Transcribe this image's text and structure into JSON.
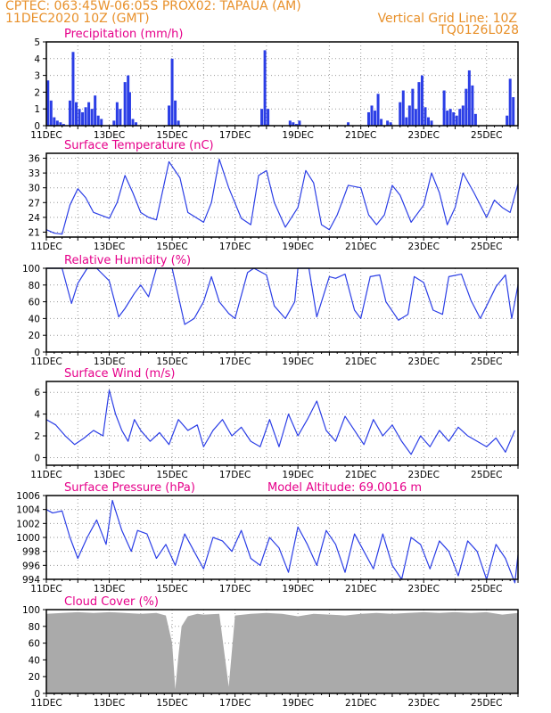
{
  "header": {
    "line1_left": "CPTEC:   063:45W-06:05S   PROX02: TAPAUA (AM)",
    "line2_left": "11DEC2020  10Z (GMT)",
    "line2_right": "Vertical Grid Line: 10Z",
    "line3_right": "TQ0126L028"
  },
  "colors": {
    "line": "#2b3ee6",
    "bar": "#2b3ee6",
    "cloud": "#aaaaaa",
    "title": "#e6008a",
    "header": "#e8902a"
  },
  "chart_data": [
    {
      "type": "bar",
      "title": "Precipitation (mm/h)",
      "x": [
        0.05,
        0.15,
        0.25,
        0.35,
        0.45,
        0.55,
        0.75,
        0.85,
        0.95,
        1.05,
        1.15,
        1.25,
        1.35,
        1.45,
        1.55,
        1.65,
        1.75,
        2.15,
        2.25,
        2.35,
        2.5,
        2.6,
        2.65,
        2.75,
        2.85,
        3.9,
        4.0,
        4.1,
        4.2,
        6.85,
        6.95,
        7.05,
        7.75,
        7.85,
        7.95,
        8.05,
        9.6,
        10.25,
        10.35,
        10.45,
        10.55,
        10.65,
        10.85,
        10.95,
        11.25,
        11.35,
        11.45,
        11.55,
        11.65,
        11.75,
        11.85,
        11.95,
        12.05,
        12.15,
        12.25,
        12.65,
        12.75,
        12.85,
        12.95,
        13.05,
        13.15,
        13.25,
        13.35,
        13.45,
        13.55,
        13.65,
        14.65,
        14.75,
        14.85
      ],
      "values": [
        2.7,
        1.5,
        0.5,
        0.3,
        0.2,
        0.1,
        1.5,
        4.4,
        1.4,
        1.0,
        0.8,
        1.1,
        1.4,
        1.0,
        1.8,
        0.6,
        0.4,
        0.3,
        1.4,
        1.0,
        2.6,
        3.0,
        2.0,
        0.4,
        0.2,
        1.2,
        4.0,
        1.5,
        0.3,
        1.0,
        4.5,
        1.0,
        0.3,
        0.2,
        0.1,
        0.3,
        0.2,
        0.8,
        1.2,
        0.9,
        1.9,
        0.4,
        0.3,
        0.2,
        1.4,
        2.1,
        0.5,
        1.2,
        2.2,
        1.0,
        2.6,
        3.0,
        1.1,
        0.5,
        0.3,
        2.1,
        0.9,
        1.0,
        0.8,
        0.6,
        1.0,
        1.2,
        2.2,
        3.3,
        2.4,
        0.7,
        0.6,
        2.8,
        1.7
      ],
      "xlim": [
        0,
        15
      ],
      "ylim": [
        0,
        5
      ],
      "yticks": [
        0,
        1,
        2,
        3,
        4,
        5
      ],
      "xticks": [
        "11DEC",
        "13DEC",
        "15DEC",
        "17DEC",
        "19DEC",
        "21DEC",
        "23DEC",
        "25DEC"
      ],
      "grid": true
    },
    {
      "type": "line",
      "title": "Surface Temperature (nC)",
      "x": [
        0,
        0.25,
        0.5,
        0.75,
        1.0,
        1.25,
        1.5,
        2.0,
        2.25,
        2.5,
        2.75,
        3.0,
        3.25,
        3.5,
        3.9,
        4.25,
        4.5,
        4.75,
        5.0,
        5.25,
        5.5,
        5.8,
        6.2,
        6.5,
        6.75,
        7.0,
        7.25,
        7.6,
        8.0,
        8.25,
        8.5,
        8.75,
        9.0,
        9.25,
        9.6,
        10.0,
        10.25,
        10.5,
        10.75,
        11.0,
        11.25,
        11.6,
        12.0,
        12.25,
        12.5,
        12.75,
        13.0,
        13.25,
        13.6,
        14.0,
        14.25,
        14.5,
        14.75,
        15.0
      ],
      "y": [
        21.5,
        20.8,
        20.6,
        26.5,
        29.8,
        28,
        25,
        23.8,
        27,
        32.5,
        29,
        25,
        24,
        23.5,
        35.3,
        32,
        25,
        24,
        23,
        27,
        35.8,
        30,
        23.8,
        22.5,
        32.5,
        33.5,
        27,
        22,
        26,
        33.5,
        31,
        22.5,
        21.5,
        24.5,
        30.5,
        30,
        24.5,
        22.5,
        24.5,
        30.5,
        28.5,
        23,
        26.5,
        33,
        29,
        22.5,
        26,
        33,
        29,
        24,
        27.5,
        26,
        25,
        30.8
      ],
      "xlim": [
        0,
        15
      ],
      "ylim": [
        20,
        37
      ],
      "yticks": [
        21,
        24,
        27,
        30,
        33,
        36
      ],
      "xticks": [
        "11DEC",
        "13DEC",
        "15DEC",
        "17DEC",
        "19DEC",
        "21DEC",
        "23DEC",
        "25DEC"
      ],
      "grid": true
    },
    {
      "type": "line",
      "title": "Relative Humidity (%)",
      "x": [
        0,
        0.5,
        0.8,
        1.0,
        1.3,
        1.6,
        2.0,
        2.3,
        2.5,
        2.8,
        3.0,
        3.25,
        3.5,
        4.0,
        4.4,
        4.7,
        5.0,
        5.25,
        5.5,
        5.8,
        6.0,
        6.4,
        6.6,
        7.0,
        7.25,
        7.6,
        7.9,
        8.0,
        8.35,
        8.6,
        9.0,
        9.2,
        9.5,
        9.8,
        10.0,
        10.3,
        10.6,
        10.8,
        11.2,
        11.5,
        11.7,
        12.0,
        12.3,
        12.6,
        12.8,
        13.2,
        13.5,
        13.8,
        14.0,
        14.3,
        14.6,
        14.8,
        15.0
      ],
      "y": [
        100,
        100,
        58,
        82,
        100,
        100,
        85,
        42,
        52,
        70,
        80,
        66,
        100,
        100,
        33,
        40,
        60,
        90,
        60,
        46,
        40,
        95,
        100,
        92,
        55,
        40,
        60,
        100,
        100,
        42,
        90,
        88,
        93,
        50,
        40,
        90,
        92,
        60,
        38,
        45,
        90,
        83,
        50,
        45,
        90,
        93,
        62,
        40,
        55,
        78,
        92,
        40,
        80
      ],
      "xlim": [
        0,
        15
      ],
      "ylim": [
        0,
        100
      ],
      "yticks": [
        0,
        20,
        40,
        60,
        80,
        100
      ],
      "xticks": [
        "11DEC",
        "13DEC",
        "15DEC",
        "17DEC",
        "19DEC",
        "21DEC",
        "23DEC",
        "25DEC"
      ],
      "grid": true
    },
    {
      "type": "line",
      "title": "Surface Wind (m/s)",
      "x": [
        0,
        0.3,
        0.6,
        0.9,
        1.2,
        1.5,
        1.8,
        2.0,
        2.2,
        2.4,
        2.6,
        2.8,
        3.0,
        3.3,
        3.6,
        3.9,
        4.2,
        4.5,
        4.8,
        5.0,
        5.3,
        5.6,
        5.9,
        6.2,
        6.5,
        6.8,
        7.1,
        7.4,
        7.7,
        8.0,
        8.3,
        8.6,
        8.9,
        9.2,
        9.5,
        9.8,
        10.1,
        10.4,
        10.7,
        11.0,
        11.3,
        11.6,
        11.9,
        12.2,
        12.5,
        12.8,
        13.1,
        13.4,
        13.7,
        14.0,
        14.3,
        14.6,
        14.9
      ],
      "y": [
        3.5,
        3.0,
        2.0,
        1.2,
        1.8,
        2.5,
        2.0,
        6.2,
        4.0,
        2.5,
        1.5,
        3.5,
        2.5,
        1.5,
        2.3,
        1.2,
        3.5,
        2.5,
        3.0,
        1.0,
        2.5,
        3.5,
        2.0,
        2.8,
        1.5,
        1.0,
        3.5,
        1.0,
        4.0,
        2.0,
        3.5,
        5.2,
        2.5,
        1.5,
        3.8,
        2.5,
        1.2,
        3.5,
        2.0,
        3.0,
        1.5,
        0.3,
        2.0,
        1.0,
        2.5,
        1.5,
        2.8,
        2.0,
        1.5,
        1.0,
        1.8,
        0.5,
        2.5
      ],
      "xlim": [
        0,
        15
      ],
      "ylim": [
        -0.7,
        7
      ],
      "yticks": [
        0,
        2,
        4,
        6
      ],
      "xticks": [
        "11DEC",
        "13DEC",
        "15DEC",
        "17DEC",
        "19DEC",
        "21DEC",
        "23DEC",
        "25DEC"
      ],
      "grid": true
    },
    {
      "type": "line",
      "title": "Surface Pressure (hPa)",
      "annotation": "Model Altitude: 69.0016 m",
      "x": [
        0,
        0.2,
        0.5,
        0.75,
        1.0,
        1.3,
        1.6,
        1.9,
        2.1,
        2.4,
        2.7,
        2.9,
        3.2,
        3.5,
        3.8,
        4.1,
        4.4,
        4.7,
        5.0,
        5.3,
        5.6,
        5.9,
        6.2,
        6.5,
        6.8,
        7.1,
        7.4,
        7.7,
        8.0,
        8.3,
        8.6,
        8.9,
        9.2,
        9.5,
        9.8,
        10.1,
        10.4,
        10.7,
        11.0,
        11.3,
        11.6,
        11.9,
        12.2,
        12.5,
        12.8,
        13.1,
        13.4,
        13.7,
        14.0,
        14.3,
        14.6,
        14.9,
        15.0
      ],
      "y": [
        1004,
        1003.5,
        1003.8,
        1000,
        997,
        1000,
        1002.5,
        999,
        1005.3,
        1001,
        998,
        1001,
        1000.5,
        997,
        999,
        996,
        1000.5,
        998,
        995.5,
        1000,
        999.5,
        998,
        1001,
        997,
        996,
        1000,
        998.5,
        995,
        1001.5,
        999,
        996,
        1001,
        999,
        995,
        1000.5,
        998,
        995.5,
        1000.5,
        996,
        994,
        1000,
        999,
        995.5,
        999.5,
        998,
        994.5,
        999.5,
        998,
        994,
        999,
        997,
        993.5,
        997.5
      ],
      "xlim": [
        0,
        15
      ],
      "ylim": [
        994,
        1006
      ],
      "yticks": [
        994,
        996,
        998,
        1000,
        1002,
        1004,
        1006
      ],
      "xticks": [
        "11DEC",
        "13DEC",
        "15DEC",
        "17DEC",
        "19DEC",
        "21DEC",
        "23DEC",
        "25DEC"
      ],
      "grid": true
    },
    {
      "type": "area",
      "title": "Cloud Cover (%)",
      "x": [
        0,
        0.5,
        1.0,
        1.5,
        2.0,
        2.5,
        3.0,
        3.5,
        3.8,
        4.0,
        4.1,
        4.2,
        4.3,
        4.5,
        4.8,
        5.0,
        5.5,
        5.8,
        6.0,
        6.5,
        7.0,
        7.5,
        8.0,
        8.5,
        9.0,
        9.5,
        10.0,
        10.5,
        11.0,
        11.5,
        12.0,
        12.5,
        13.0,
        13.5,
        14.0,
        14.5,
        15.0
      ],
      "y": [
        95,
        96,
        97,
        96,
        97,
        96,
        95,
        96,
        93,
        60,
        5,
        45,
        80,
        92,
        95,
        94,
        95,
        8,
        93,
        95,
        96,
        95,
        92,
        95,
        94,
        93,
        95,
        96,
        95,
        96,
        97,
        96,
        97,
        96,
        97,
        94,
        96
      ],
      "xlim": [
        0,
        15
      ],
      "ylim": [
        0,
        100
      ],
      "yticks": [
        0,
        20,
        40,
        60,
        80,
        100
      ],
      "xticks": [
        "11DEC",
        "13DEC",
        "15DEC",
        "17DEC",
        "19DEC",
        "21DEC",
        "23DEC",
        "25DEC"
      ],
      "grid": true
    }
  ]
}
